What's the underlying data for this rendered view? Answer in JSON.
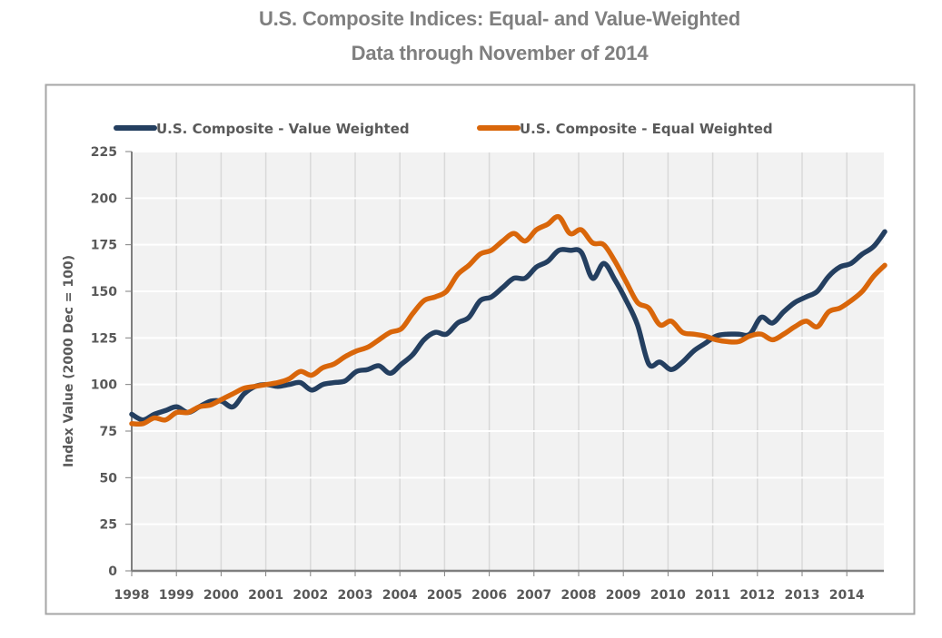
{
  "chart_data": {
    "type": "line",
    "title": "U.S. Composite Indices: Equal- and Value-Weighted",
    "subtitle": "Data through November of 2014",
    "xlabel": "",
    "ylabel": "Index Value (2000 Dec = 100)",
    "ylim": [
      0,
      225
    ],
    "yticks": [
      0,
      25,
      50,
      75,
      100,
      125,
      150,
      175,
      200,
      225
    ],
    "xlim": [
      1998,
      2014.85
    ],
    "xticks": [
      "1998",
      "1999",
      "2000",
      "2001",
      "2002",
      "2003",
      "2004",
      "2005",
      "2006",
      "2007",
      "2008",
      "2009",
      "2010",
      "2011",
      "2012",
      "2013",
      "2014"
    ],
    "grid": true,
    "legend_position": "top",
    "x_step": "quarterly",
    "x_start": 1998,
    "series": [
      {
        "name": "U.S. Composite - Value Weighted",
        "color": "#243F60",
        "values": [
          84,
          81,
          84,
          86,
          88,
          85,
          88,
          91,
          91,
          88,
          95,
          99,
          100,
          99,
          100,
          101,
          97,
          100,
          101,
          102,
          107,
          108,
          110,
          106,
          111,
          116,
          124,
          128,
          127,
          133,
          136,
          145,
          147,
          152,
          157,
          157,
          163,
          166,
          172,
          172,
          171,
          157,
          165,
          156,
          145,
          132,
          111,
          112,
          108,
          112,
          118,
          122,
          126,
          127,
          127,
          127,
          136,
          133,
          139,
          144,
          147,
          150,
          158,
          163,
          165,
          170,
          174,
          182
        ]
      },
      {
        "name": "U.S. Composite - Equal Weighted",
        "color": "#D9660A",
        "values": [
          79,
          79,
          82,
          81,
          85,
          85,
          88,
          89,
          92,
          95,
          98,
          99,
          100,
          101,
          103,
          107,
          105,
          109,
          111,
          115,
          118,
          120,
          124,
          128,
          130,
          138,
          145,
          147,
          150,
          159,
          164,
          170,
          172,
          177,
          181,
          177,
          183,
          186,
          190,
          181,
          183,
          176,
          175,
          166,
          155,
          144,
          141,
          132,
          134,
          128,
          127,
          126,
          124,
          123,
          123,
          126,
          127,
          124,
          127,
          131,
          134,
          131,
          139,
          141,
          145,
          150,
          158,
          164
        ]
      }
    ]
  },
  "colors": {
    "title": "#7F7F7F",
    "plot_background": "#F2F2F2",
    "axis_text": "#595959",
    "frame": "#A6A6A6"
  }
}
